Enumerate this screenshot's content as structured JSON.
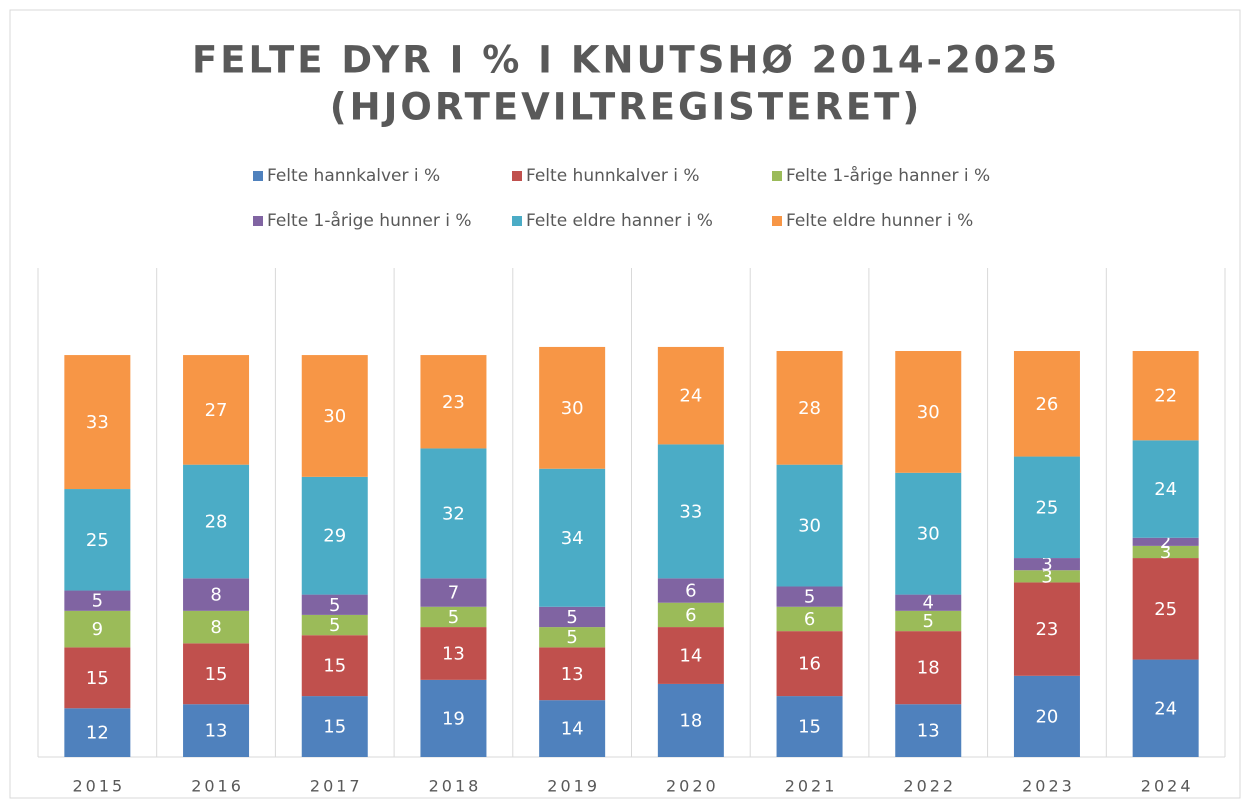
{
  "chart_data": {
    "type": "stacked-bar",
    "title": [
      "FELTE DYR I % I KNUTSHØ 2014-2025",
      "(HJORTEVILTREGISTERET)"
    ],
    "categories": [
      "2015",
      "2016",
      "2017",
      "2018",
      "2019",
      "2020",
      "2021",
      "2022",
      "2023",
      "2024"
    ],
    "series": [
      {
        "name": "Felte hannkalver i %",
        "color": "#4f81bd",
        "values": [
          12,
          13,
          15,
          19,
          14,
          18,
          15,
          13,
          20,
          24
        ]
      },
      {
        "name": "Felte hunnkalver i %",
        "color": "#c0504d",
        "values": [
          15,
          15,
          15,
          13,
          13,
          14,
          16,
          18,
          23,
          25
        ]
      },
      {
        "name": "Felte 1-årige hanner i %",
        "color": "#9bbb59",
        "values": [
          9,
          8,
          5,
          5,
          5,
          6,
          6,
          5,
          3,
          3
        ]
      },
      {
        "name": "Felte 1-årige hunner i %",
        "color": "#8064a2",
        "values": [
          5,
          8,
          5,
          7,
          5,
          6,
          5,
          4,
          3,
          2
        ]
      },
      {
        "name": "Felte eldre hanner i %",
        "color": "#4bacc6",
        "values": [
          25,
          28,
          29,
          32,
          34,
          33,
          30,
          30,
          25,
          24
        ]
      },
      {
        "name": "Felte eldre hunner i %",
        "color": "#f79646",
        "values": [
          33,
          27,
          30,
          23,
          30,
          24,
          28,
          30,
          26,
          22
        ]
      }
    ]
  }
}
